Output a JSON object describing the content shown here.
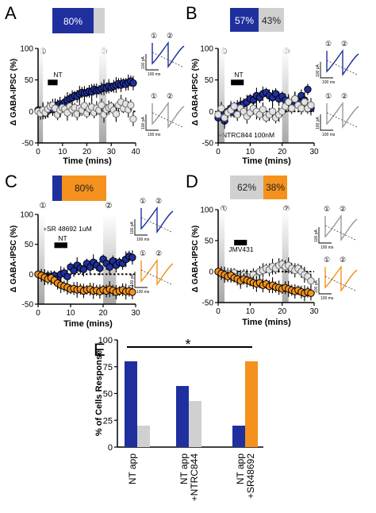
{
  "colors": {
    "blue": "#1f2f9e",
    "gray": "#d0d0d0",
    "orange": "#f4921d",
    "open_edge": "#6f6f6f",
    "black": "#000000",
    "shade": "#9a9a9a"
  },
  "panels": {
    "A": {
      "letter": "A",
      "pct_blue": "80%",
      "timepoint_1": "①",
      "timepoint_2": "②",
      "bar_label": "NT",
      "extra_label": ""
    },
    "B": {
      "letter": "B",
      "pct_blue": "57%",
      "pct_gray": "43%",
      "timepoint_1": "①",
      "timepoint_2": "②",
      "bar_label": "NT",
      "extra_label": "+NTRC844 100nM"
    },
    "C": {
      "letter": "C",
      "pct_orange": "80%",
      "timepoint_1": "①",
      "timepoint_2": "②",
      "bar_label": "NT",
      "extra_label": "+SR 48692 1uM"
    },
    "D": {
      "letter": "D",
      "pct_gray": "62%",
      "pct_orange": "38%",
      "timepoint_1": "①",
      "timepoint_2": "②",
      "bar_label": "JMV431",
      "extra_label": ""
    },
    "E": {
      "letter": "E",
      "significance": "*"
    }
  },
  "trace_labels": {
    "circled_1": "①",
    "circled_2": "②",
    "scale_current": "100 pA",
    "scale_time": "100 ms"
  },
  "chart_data": [
    {
      "id": "A",
      "type": "scatter",
      "xlabel": "Time (mins)",
      "ylabel": "Δ GABA-IPSC (%)",
      "xlim": [
        0,
        40
      ],
      "ylim": [
        -50,
        100
      ],
      "xticks": [
        0,
        10,
        20,
        30,
        40
      ],
      "yticks": [
        -50,
        0,
        50,
        100
      ],
      "shaded_x": [
        [
          0,
          2
        ],
        [
          25,
          28
        ]
      ],
      "drug_bar_x": [
        4,
        8
      ],
      "series": [
        {
          "color": "blue",
          "x": [
            0,
            1,
            2,
            3,
            4,
            5,
            6,
            7,
            8,
            9,
            10,
            11,
            12,
            13,
            14,
            15,
            16,
            17,
            18,
            19,
            20,
            21,
            22,
            23,
            24,
            25,
            26,
            27,
            28,
            29,
            30,
            31,
            32,
            33,
            34,
            35,
            36,
            37,
            38,
            39
          ],
          "y": [
            2,
            -2,
            0,
            -3,
            1,
            5,
            3,
            8,
            10,
            12,
            10,
            15,
            18,
            20,
            22,
            25,
            24,
            28,
            30,
            29,
            30,
            32,
            31,
            35,
            33,
            34,
            36,
            38,
            37,
            40,
            38,
            40,
            42,
            44,
            42,
            45,
            43,
            46,
            48,
            45
          ]
        },
        {
          "color": "gray",
          "x": [
            0,
            1,
            2,
            3,
            4,
            5,
            6,
            7,
            8,
            9,
            10,
            11,
            12,
            13,
            14,
            15,
            16,
            17,
            18,
            19,
            20,
            21,
            22,
            23,
            24,
            25,
            26,
            27,
            28,
            29,
            30,
            31,
            32,
            33,
            34,
            35,
            36,
            37,
            38,
            39
          ],
          "y": [
            0,
            -3,
            2,
            -2,
            4,
            8,
            10,
            5,
            -5,
            2,
            6,
            4,
            -2,
            8,
            3,
            6,
            -4,
            5,
            2,
            9,
            -3,
            4,
            7,
            -2,
            5,
            2,
            10,
            -5,
            3,
            6,
            8,
            2,
            -4,
            10,
            15,
            5,
            12,
            3,
            10,
            -12
          ]
        }
      ]
    },
    {
      "id": "B",
      "type": "scatter",
      "xlabel": "Time (mins)",
      "ylabel": "Δ GABA-IPSC (%)",
      "xlim": [
        0,
        30
      ],
      "ylim": [
        -50,
        100
      ],
      "xticks": [
        0,
        10,
        20,
        30
      ],
      "yticks": [
        -50,
        0,
        50,
        100
      ],
      "shaded_x": [
        [
          0,
          2
        ],
        [
          20,
          22
        ]
      ],
      "drug_bar_x": [
        4,
        8
      ],
      "series": [
        {
          "color": "blue",
          "x": [
            0,
            1,
            2,
            3,
            4,
            5,
            6,
            7,
            8,
            9,
            10,
            11,
            12,
            13,
            14,
            15,
            16,
            17,
            18,
            19,
            20,
            21,
            22,
            23,
            24,
            25,
            26,
            27,
            28,
            29
          ],
          "y": [
            -10,
            -5,
            -15,
            0,
            5,
            -2,
            8,
            10,
            12,
            15,
            20,
            18,
            25,
            22,
            28,
            30,
            25,
            22,
            28,
            20,
            24,
            18,
            12,
            10,
            20,
            15,
            25,
            18,
            35,
            5
          ]
        },
        {
          "color": "gray",
          "x": [
            0,
            1,
            2,
            3,
            4,
            5,
            6,
            7,
            8,
            9,
            10,
            11,
            12,
            13,
            14,
            15,
            16,
            17,
            18,
            19,
            20,
            21,
            22,
            23,
            24,
            25,
            26,
            27,
            28,
            29
          ],
          "y": [
            -5,
            5,
            -10,
            -2,
            2,
            8,
            -5,
            5,
            0,
            -8,
            -2,
            5,
            0,
            -5,
            3,
            -10,
            -5,
            0,
            -10,
            -5,
            0,
            8,
            15,
            5,
            20,
            10,
            5,
            15,
            5,
            10
          ]
        }
      ]
    },
    {
      "id": "C",
      "type": "scatter",
      "xlabel": "Time (mins)",
      "ylabel": "Δ GABA-IPSC (%)",
      "xlim": [
        0,
        30
      ],
      "ylim": [
        -50,
        100
      ],
      "xticks": [
        0,
        10,
        20,
        30
      ],
      "yticks": [
        -50,
        0,
        50,
        100
      ],
      "shaded_x": [
        [
          0,
          2
        ],
        [
          20,
          24
        ]
      ],
      "drug_bar_x": [
        5,
        9
      ],
      "series": [
        {
          "color": "blue",
          "x": [
            0,
            1,
            2,
            3,
            4,
            5,
            6,
            7,
            8,
            9,
            10,
            11,
            12,
            13,
            14,
            15,
            16,
            17,
            18,
            19,
            20,
            21,
            22,
            23,
            24,
            25,
            26,
            27,
            28,
            29
          ],
          "y": [
            0,
            -2,
            -5,
            -3,
            -6,
            -2,
            -8,
            0,
            2,
            -4,
            12,
            6,
            15,
            10,
            8,
            18,
            12,
            20,
            15,
            10,
            25,
            18,
            12,
            22,
            15,
            20,
            18,
            25,
            30,
            28
          ]
        },
        {
          "color": "orange",
          "x": [
            0,
            1,
            2,
            3,
            4,
            5,
            6,
            7,
            8,
            9,
            10,
            11,
            12,
            13,
            14,
            15,
            16,
            17,
            18,
            19,
            20,
            21,
            22,
            23,
            24,
            25,
            26,
            27,
            28,
            29
          ],
          "y": [
            0,
            -2,
            -5,
            -8,
            -6,
            -10,
            -15,
            -18,
            -20,
            -22,
            -25,
            -24,
            -26,
            -25,
            -28,
            -26,
            -25,
            -28,
            -27,
            -29,
            -26,
            -28,
            -25,
            -27,
            -30,
            -28,
            -26,
            -29,
            -28,
            -30
          ]
        }
      ]
    },
    {
      "id": "D",
      "type": "scatter",
      "xlabel": "Time (mins)",
      "ylabel": "Δ GABA-IPSC (%)",
      "xlim": [
        0,
        30
      ],
      "ylim": [
        -50,
        100
      ],
      "xticks": [
        0,
        10,
        20,
        30
      ],
      "yticks": [
        -50,
        0,
        50,
        100
      ],
      "shaded_x": [
        [
          0,
          2
        ],
        [
          20,
          22
        ]
      ],
      "drug_bar_x": [
        5,
        9
      ],
      "series": [
        {
          "color": "gray",
          "x": [
            0,
            1,
            2,
            3,
            4,
            5,
            6,
            7,
            8,
            9,
            10,
            11,
            12,
            13,
            14,
            15,
            16,
            17,
            18,
            19,
            20,
            21,
            22,
            23,
            24,
            25,
            26,
            27,
            28,
            29
          ],
          "y": [
            0,
            -2,
            -5,
            -3,
            -6,
            -2,
            -8,
            -10,
            -5,
            -8,
            -12,
            -5,
            -10,
            0,
            2,
            5,
            3,
            8,
            5,
            10,
            12,
            8,
            10,
            5,
            2,
            5,
            0,
            -5,
            -8,
            -15
          ]
        },
        {
          "color": "orange",
          "x": [
            0,
            1,
            2,
            3,
            4,
            5,
            6,
            7,
            8,
            9,
            10,
            11,
            12,
            13,
            14,
            15,
            16,
            17,
            18,
            19,
            20,
            21,
            22,
            23,
            24,
            25,
            26,
            27,
            28,
            29
          ],
          "y": [
            0,
            -3,
            -5,
            -8,
            -6,
            -10,
            -12,
            -15,
            -12,
            -14,
            -16,
            -18,
            -20,
            -18,
            -22,
            -20,
            -24,
            -22,
            -25,
            -26,
            -28,
            -26,
            -28,
            -30,
            -32,
            -30,
            -33,
            -35,
            -33,
            -35
          ]
        }
      ]
    },
    {
      "id": "E",
      "type": "bar",
      "ylabel": "% of Cells Response",
      "ylim": [
        0,
        100
      ],
      "yticks": [
        0,
        25,
        50,
        75,
        100
      ],
      "categories": [
        "NT app",
        "NT app\n+NTRC844",
        "NT app\n+SR48692"
      ],
      "series": [
        {
          "color": "blue",
          "values": [
            80,
            57,
            20
          ]
        },
        {
          "color": "gray",
          "values": [
            20,
            43,
            0
          ]
        },
        {
          "color": "orange",
          "values": [
            0,
            0,
            80
          ]
        }
      ]
    }
  ]
}
